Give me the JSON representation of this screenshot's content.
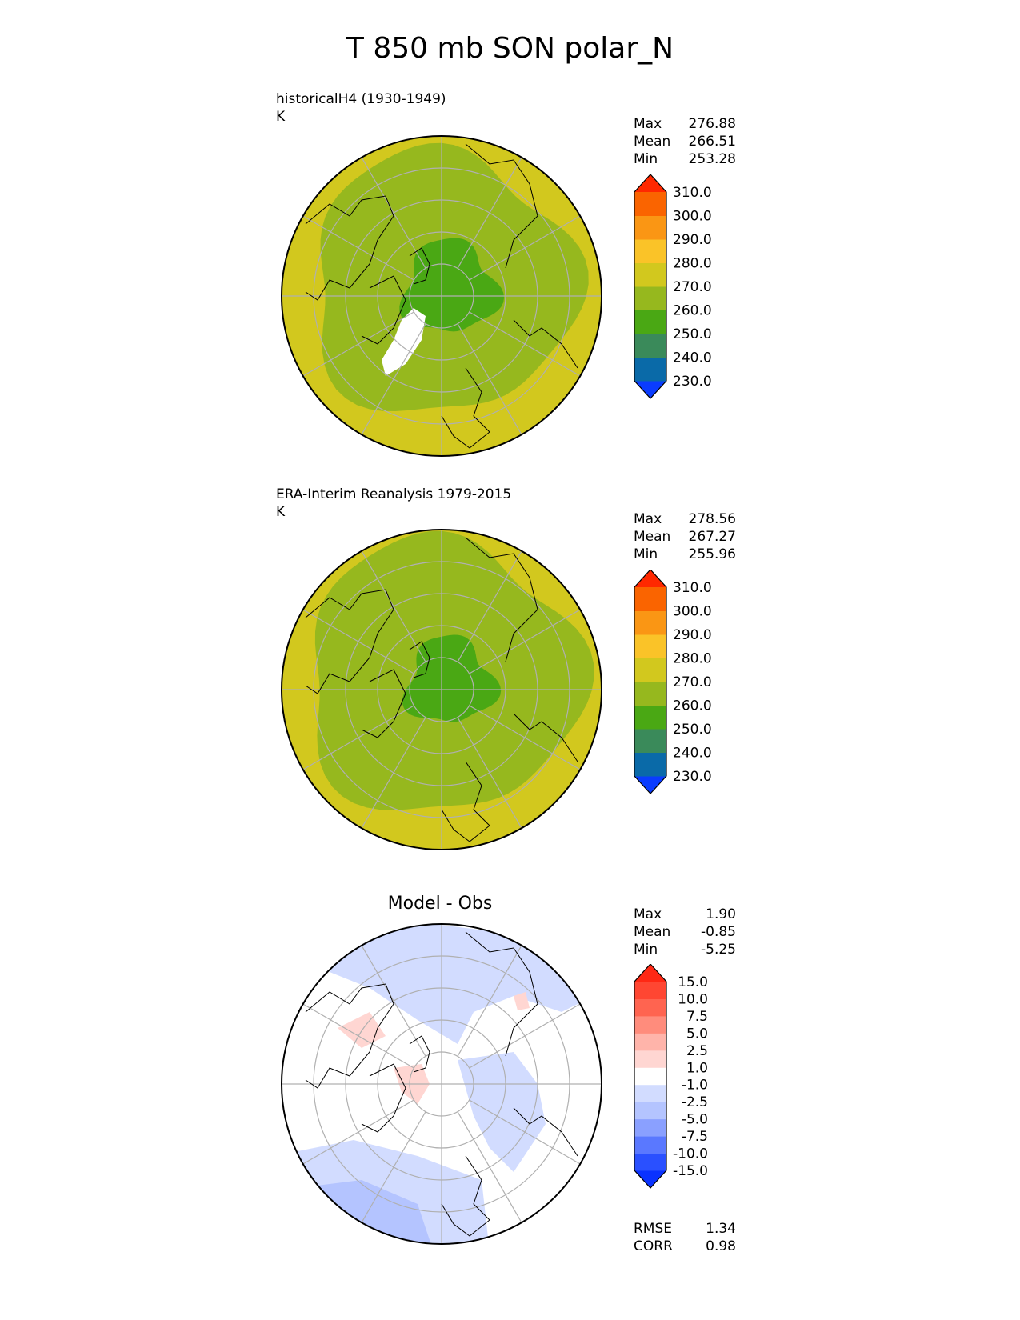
{
  "title": "T 850 mb SON polar_N",
  "panels": [
    {
      "id": "model",
      "label_line1": "historicalH4 (1930-1949)",
      "label_line2": "K",
      "stats": [
        {
          "name": "Max",
          "value": "276.88"
        },
        {
          "name": "Mean",
          "value": "266.51"
        },
        {
          "name": "Min",
          "value": "253.28"
        }
      ]
    },
    {
      "id": "obs",
      "label_line1": "ERA-Interim Reanalysis 1979-2015",
      "label_line2": "K",
      "stats": [
        {
          "name": "Max",
          "value": "278.56"
        },
        {
          "name": "Mean",
          "value": "267.27"
        },
        {
          "name": "Min",
          "value": "255.96"
        }
      ]
    },
    {
      "id": "diff",
      "title": "Model - Obs",
      "stats": [
        {
          "name": "Max",
          "value": "1.90"
        },
        {
          "name": "Mean",
          "value": "-0.85"
        },
        {
          "name": "Min",
          "value": "-5.25"
        }
      ],
      "metrics": [
        {
          "name": "RMSE",
          "value": "1.34"
        },
        {
          "name": "CORR",
          "value": "0.98"
        }
      ]
    }
  ],
  "chart_data": [
    {
      "type": "heatmap",
      "projection": "north polar stereographic",
      "title": "historicalH4 (1930-1949)",
      "units": "K",
      "levels": [
        "230.0",
        "240.0",
        "250.0",
        "260.0",
        "270.0",
        "280.0",
        "290.0",
        "300.0",
        "310.0"
      ],
      "colors": [
        "#0a3cff",
        "#0a6aa8",
        "#3a8a5a",
        "#4aa814",
        "#96b81e",
        "#d2c81e",
        "#fac328",
        "#fa9614",
        "#fa6400",
        "#ff2800"
      ],
      "field_rings": [
        {
          "range": "250-260",
          "color": "#4aa814"
        },
        {
          "range": "260-270",
          "color": "#96b81e"
        },
        {
          "range": "270-280",
          "color": "#d2c81e"
        }
      ],
      "missing_region": "Greenland (white)"
    },
    {
      "type": "heatmap",
      "projection": "north polar stereographic",
      "title": "ERA-Interim Reanalysis 1979-2015",
      "units": "K",
      "levels": [
        "230.0",
        "240.0",
        "250.0",
        "260.0",
        "270.0",
        "280.0",
        "290.0",
        "300.0",
        "310.0"
      ],
      "colors": [
        "#0a3cff",
        "#0a6aa8",
        "#3a8a5a",
        "#4aa814",
        "#96b81e",
        "#d2c81e",
        "#fac328",
        "#fa9614",
        "#fa6400",
        "#ff2800"
      ],
      "field_rings": [
        {
          "range": "250-260",
          "color": "#4aa814"
        },
        {
          "range": "260-270",
          "color": "#96b81e"
        },
        {
          "range": "270-280",
          "color": "#d2c81e"
        }
      ]
    },
    {
      "type": "heatmap",
      "projection": "north polar stereographic",
      "title": "Model - Obs",
      "levels": [
        "-15.0",
        "-10.0",
        "-7.5",
        "-5.0",
        "-2.5",
        "-1.0",
        "1.0",
        "2.5",
        "5.0",
        "7.5",
        "10.0",
        "15.0"
      ],
      "colors": [
        "#0a32ff",
        "#2a50ff",
        "#5a78ff",
        "#8aa0ff",
        "#b4c4ff",
        "#d2dcff",
        "#ffffff",
        "#ffd6d2",
        "#ffb4aa",
        "#ff8c7c",
        "#ff6450",
        "#ff4632",
        "#ff2814"
      ]
    }
  ]
}
